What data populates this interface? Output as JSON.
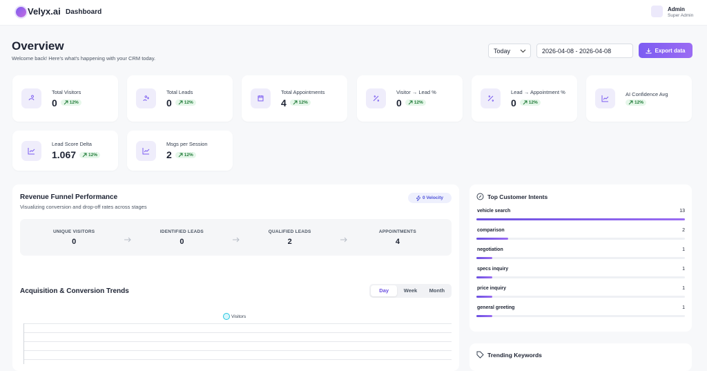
{
  "header": {
    "brand": "Velyx.ai",
    "page": "Dashboard",
    "user": {
      "name": "Admin",
      "role": "Super Admin"
    }
  },
  "overview": {
    "title": "Overview",
    "subtitle": "Welcome back! Here's what's happening with your CRM today.",
    "period": "Today",
    "date_range": "2026-04-08 - 2026-04-08",
    "export": "Export data"
  },
  "stats": [
    {
      "label": "Total Visitors",
      "value": 0,
      "change": "12%"
    },
    {
      "label": "Total Leads",
      "value": 0,
      "change": "12%"
    },
    {
      "label": "Total Appointments",
      "value": 4,
      "change": "12%"
    },
    {
      "label": "Visitor → Lead %",
      "value": 0,
      "change": "12%"
    },
    {
      "label": "Lead → Appointment %",
      "value": 0,
      "change": "12%"
    },
    {
      "label": "AI Confidence Avg",
      "change": "12%"
    },
    {
      "label": "Lead Score Delta",
      "value": 1.067,
      "change": "12%"
    },
    {
      "label": "Msgs per Session",
      "value": 2,
      "change": "12%"
    }
  ],
  "funnel": {
    "title": "Revenue Funnel Performance",
    "subtitle": "Visualizing conversion and drop-off rates across stages",
    "velocity": "0 Velocity",
    "stages": [
      {
        "label": "UNIQUE VISITORS",
        "value": 0
      },
      {
        "label": "IDENTIFIED LEADS",
        "value": 0
      },
      {
        "label": "QUALIFIED LEADS",
        "value": 2
      },
      {
        "label": "APPOINTMENTS",
        "value": 4
      }
    ]
  },
  "trends": {
    "title": "Acquisition & Conversion Trends",
    "tabs": [
      "Day",
      "Week",
      "Month"
    ],
    "active_tab": "Day",
    "legend": "Visitors"
  },
  "intents": {
    "title": "Top Customer Intents",
    "items": [
      {
        "label": "vehicle search",
        "count": 13
      },
      {
        "label": "comparison",
        "count": 2
      },
      {
        "label": "negotiation",
        "count": 1
      },
      {
        "label": "specs inquiry",
        "count": 1
      },
      {
        "label": "price inquiry",
        "count": 1
      },
      {
        "label": "general greeting",
        "count": 1
      }
    ]
  },
  "keywords": {
    "title": "Trending Keywords"
  }
}
